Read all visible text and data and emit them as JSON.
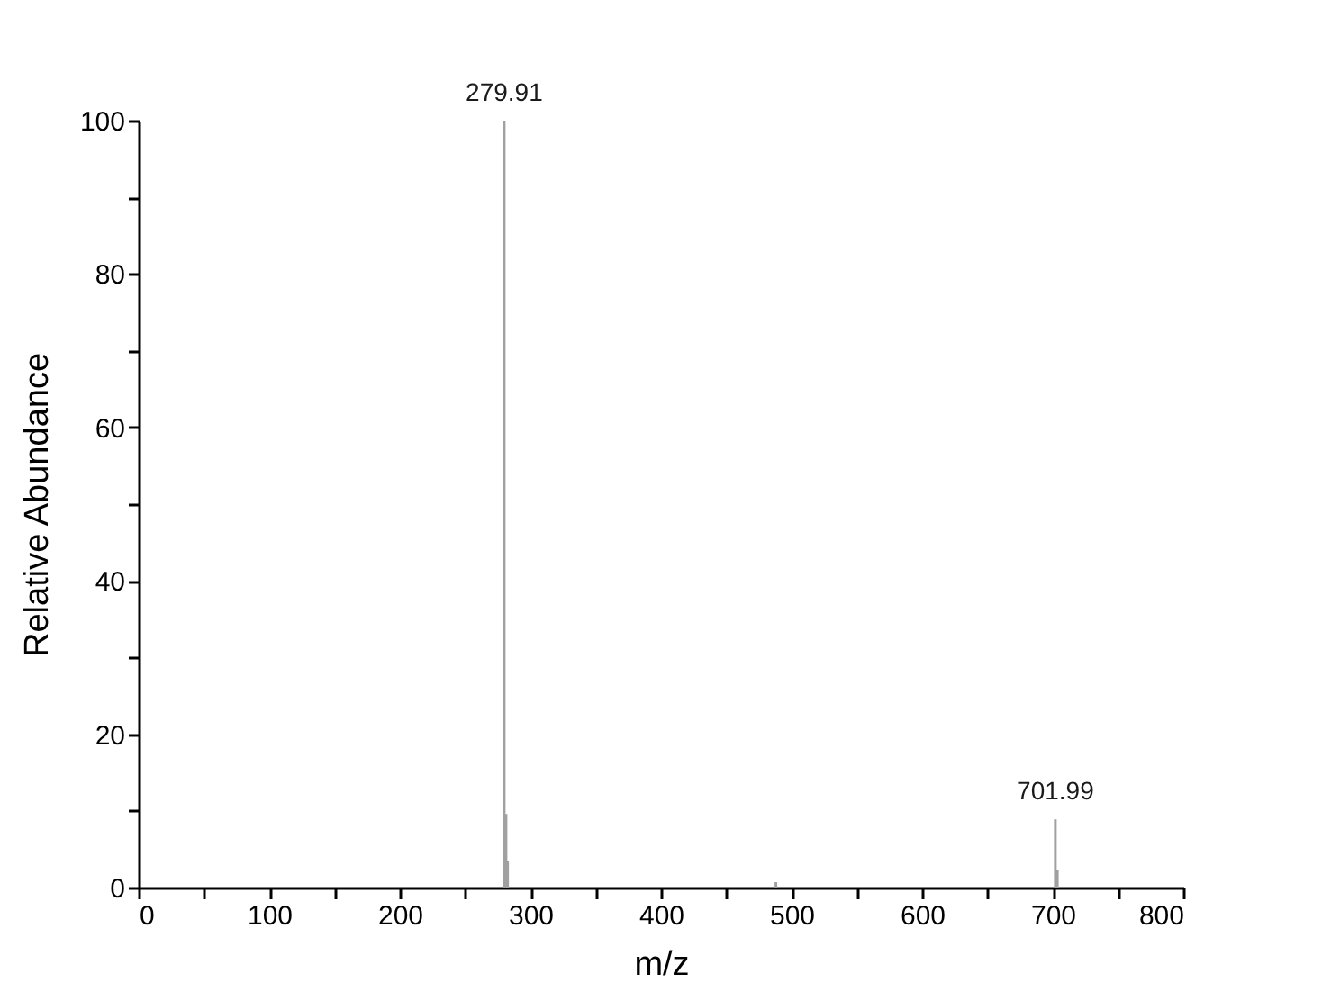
{
  "chart_data": {
    "type": "bar",
    "xlabel": "m/z",
    "ylabel": "Relative Abundance",
    "x": [
      279.91,
      281.3,
      282.5,
      488,
      701.99,
      703.5
    ],
    "values": [
      100,
      9.6,
      3.5,
      0.7,
      8.9,
      2.3
    ],
    "color": "#a0a0a0",
    "xlim": [
      0,
      800
    ],
    "ylim": [
      0,
      100
    ],
    "xticks": [
      0,
      {
        "value": 50,
        "label": null
      },
      100,
      {
        "value": 150,
        "label": null
      },
      200,
      {
        "value": 250,
        "label": null
      },
      300,
      {
        "value": 350,
        "label": null
      },
      400,
      {
        "value": 450,
        "label": null
      },
      500,
      {
        "value": 550,
        "label": null
      },
      600,
      {
        "value": 650,
        "label": null
      },
      700,
      {
        "value": 750,
        "label": null
      },
      800
    ],
    "yticks": [
      0,
      {
        "value": 10,
        "label": null
      },
      20,
      {
        "value": 30,
        "label": null
      },
      40,
      {
        "value": 50,
        "label": null
      },
      60,
      {
        "value": 70,
        "label": null
      },
      80,
      {
        "value": 90,
        "label": null
      },
      100
    ],
    "annotations": [
      {
        "text": "279.91",
        "x": 279.91,
        "y": 100
      },
      {
        "text": "701.99",
        "x": 701.99,
        "y": 8.9
      }
    ],
    "grid": false
  }
}
